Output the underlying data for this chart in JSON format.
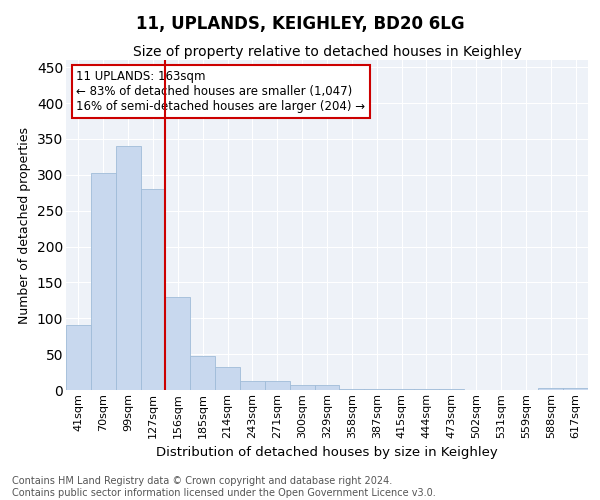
{
  "title": "11, UPLANDS, KEIGHLEY, BD20 6LG",
  "subtitle": "Size of property relative to detached houses in Keighley",
  "xlabel": "Distribution of detached houses by size in Keighley",
  "ylabel": "Number of detached properties",
  "categories": [
    "41sqm",
    "70sqm",
    "99sqm",
    "127sqm",
    "156sqm",
    "185sqm",
    "214sqm",
    "243sqm",
    "271sqm",
    "300sqm",
    "329sqm",
    "358sqm",
    "387sqm",
    "415sqm",
    "444sqm",
    "473sqm",
    "502sqm",
    "531sqm",
    "559sqm",
    "588sqm",
    "617sqm"
  ],
  "values": [
    90,
    302,
    340,
    280,
    130,
    47,
    32,
    13,
    13,
    7,
    7,
    2,
    2,
    1,
    1,
    1,
    0,
    0,
    0,
    3,
    3
  ],
  "bar_color": "#c8d8ee",
  "bar_edge_color": "#a0bcd8",
  "vline_color": "#cc0000",
  "vline_pos": 3.5,
  "annotation_text": "11 UPLANDS: 163sqm\n← 83% of detached houses are smaller (1,047)\n16% of semi-detached houses are larger (204) →",
  "annotation_box_facecolor": "#ffffff",
  "annotation_box_edgecolor": "#cc0000",
  "ylim": [
    0,
    460
  ],
  "xlim_min": -0.5,
  "background_color": "#eef2f8",
  "grid_color": "#ffffff",
  "footer_text": "Contains HM Land Registry data © Crown copyright and database right 2024.\nContains public sector information licensed under the Open Government Licence v3.0.",
  "title_fontsize": 12,
  "subtitle_fontsize": 10,
  "xlabel_fontsize": 9.5,
  "ylabel_fontsize": 9,
  "tick_fontsize": 8,
  "annotation_fontsize": 8.5,
  "footer_fontsize": 7
}
